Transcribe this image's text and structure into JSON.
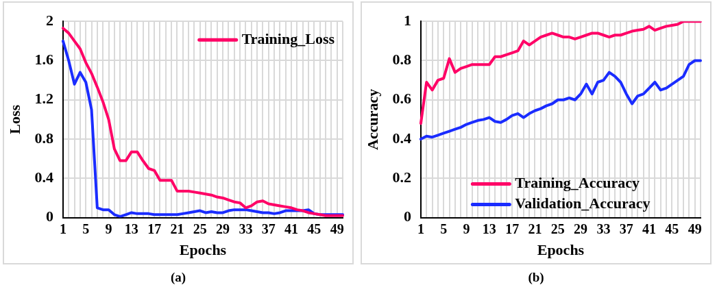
{
  "chart_data": [
    {
      "type": "line",
      "xlabel": "Epochs",
      "ylabel": "Loss",
      "annotations": [
        "(a)"
      ],
      "categories": [
        "1",
        null,
        null,
        null,
        "5",
        null,
        null,
        null,
        "9",
        null,
        null,
        null,
        "13",
        null,
        null,
        null,
        "17",
        null,
        null,
        null,
        "21",
        null,
        null,
        null,
        "25",
        null,
        null,
        null,
        "29",
        null,
        null,
        null,
        "33",
        null,
        null,
        null,
        "37",
        null,
        null,
        null,
        "41",
        null,
        null,
        null,
        "45",
        null,
        null,
        null,
        "49",
        null
      ],
      "ylim": [
        0,
        2
      ],
      "yticks": [
        0,
        0.4,
        0.8,
        1.2,
        1.6,
        2
      ],
      "grid": true,
      "legend": "top right",
      "line_style": "solid",
      "marker": "none",
      "series": [
        {
          "name": "Training_Loss",
          "color": "#ff0066",
          "values": [
            1.93,
            1.88,
            1.8,
            1.72,
            1.58,
            1.47,
            1.33,
            1.18,
            1.0,
            0.7,
            0.58,
            0.58,
            0.67,
            0.67,
            0.58,
            0.5,
            0.48,
            0.38,
            0.38,
            0.38,
            0.27,
            0.27,
            0.27,
            0.26,
            0.25,
            0.24,
            0.23,
            0.21,
            0.2,
            0.18,
            0.16,
            0.15,
            0.1,
            0.12,
            0.16,
            0.17,
            0.14,
            0.13,
            0.12,
            0.11,
            0.1,
            0.08,
            0.07,
            0.05,
            0.04,
            0.03,
            0.02,
            0.02,
            0.02,
            0.02
          ]
        },
        {
          "color": "#1a2cff",
          "values": [
            1.8,
            1.6,
            1.36,
            1.48,
            1.38,
            1.1,
            0.1,
            0.08,
            0.08,
            0.03,
            0.01,
            0.03,
            0.05,
            0.04,
            0.04,
            0.04,
            0.03,
            0.03,
            0.03,
            0.03,
            0.03,
            0.04,
            0.05,
            0.06,
            0.07,
            0.05,
            0.06,
            0.05,
            0.05,
            0.07,
            0.08,
            0.08,
            0.08,
            0.07,
            0.06,
            0.05,
            0.05,
            0.04,
            0.05,
            0.07,
            0.07,
            0.07,
            0.07,
            0.08,
            0.04,
            0.03,
            0.03,
            0.03,
            0.03,
            0.03
          ]
        }
      ]
    },
    {
      "type": "line",
      "xlabel": "Epochs",
      "ylabel": "Accuracy",
      "annotations": [
        "(b)"
      ],
      "categories": [
        "1",
        null,
        null,
        null,
        "5",
        null,
        null,
        null,
        "9",
        null,
        null,
        null,
        "13",
        null,
        null,
        null,
        "17",
        null,
        null,
        null,
        "21",
        null,
        null,
        null,
        "25",
        null,
        null,
        null,
        "29",
        null,
        null,
        null,
        "33",
        null,
        null,
        null,
        "37",
        null,
        null,
        null,
        "41",
        null,
        null,
        null,
        "45",
        null,
        null,
        null,
        "49",
        null
      ],
      "ylim": [
        0,
        1
      ],
      "yticks": [
        0,
        0.2,
        0.4,
        0.6,
        0.8,
        1
      ],
      "grid": true,
      "legend": "bottom",
      "line_style": "solid",
      "marker": "none",
      "series": [
        {
          "name": "Training_Accuracy",
          "color": "#ff0066",
          "values": [
            0.48,
            0.69,
            0.65,
            0.7,
            0.71,
            0.81,
            0.74,
            0.76,
            0.77,
            0.78,
            0.78,
            0.78,
            0.78,
            0.82,
            0.82,
            0.83,
            0.84,
            0.85,
            0.9,
            0.88,
            0.9,
            0.92,
            0.93,
            0.94,
            0.93,
            0.92,
            0.92,
            0.91,
            0.92,
            0.93,
            0.94,
            0.94,
            0.93,
            0.92,
            0.93,
            0.93,
            0.94,
            0.95,
            0.955,
            0.96,
            0.975,
            0.955,
            0.965,
            0.975,
            0.98,
            0.985,
            1.0,
            1.0,
            1.0,
            1.0
          ]
        },
        {
          "name": "Validation_Accuracy",
          "color": "#1a2cff",
          "values": [
            0.4,
            0.415,
            0.41,
            0.42,
            0.43,
            0.44,
            0.45,
            0.46,
            0.475,
            0.485,
            0.495,
            0.5,
            0.51,
            0.49,
            0.485,
            0.5,
            0.52,
            0.53,
            0.51,
            0.53,
            0.545,
            0.555,
            0.57,
            0.58,
            0.6,
            0.6,
            0.61,
            0.6,
            0.63,
            0.68,
            0.63,
            0.69,
            0.7,
            0.74,
            0.72,
            0.69,
            0.63,
            0.58,
            0.62,
            0.63,
            0.66,
            0.69,
            0.65,
            0.66,
            0.68,
            0.7,
            0.72,
            0.78,
            0.8,
            0.8
          ]
        }
      ]
    }
  ]
}
